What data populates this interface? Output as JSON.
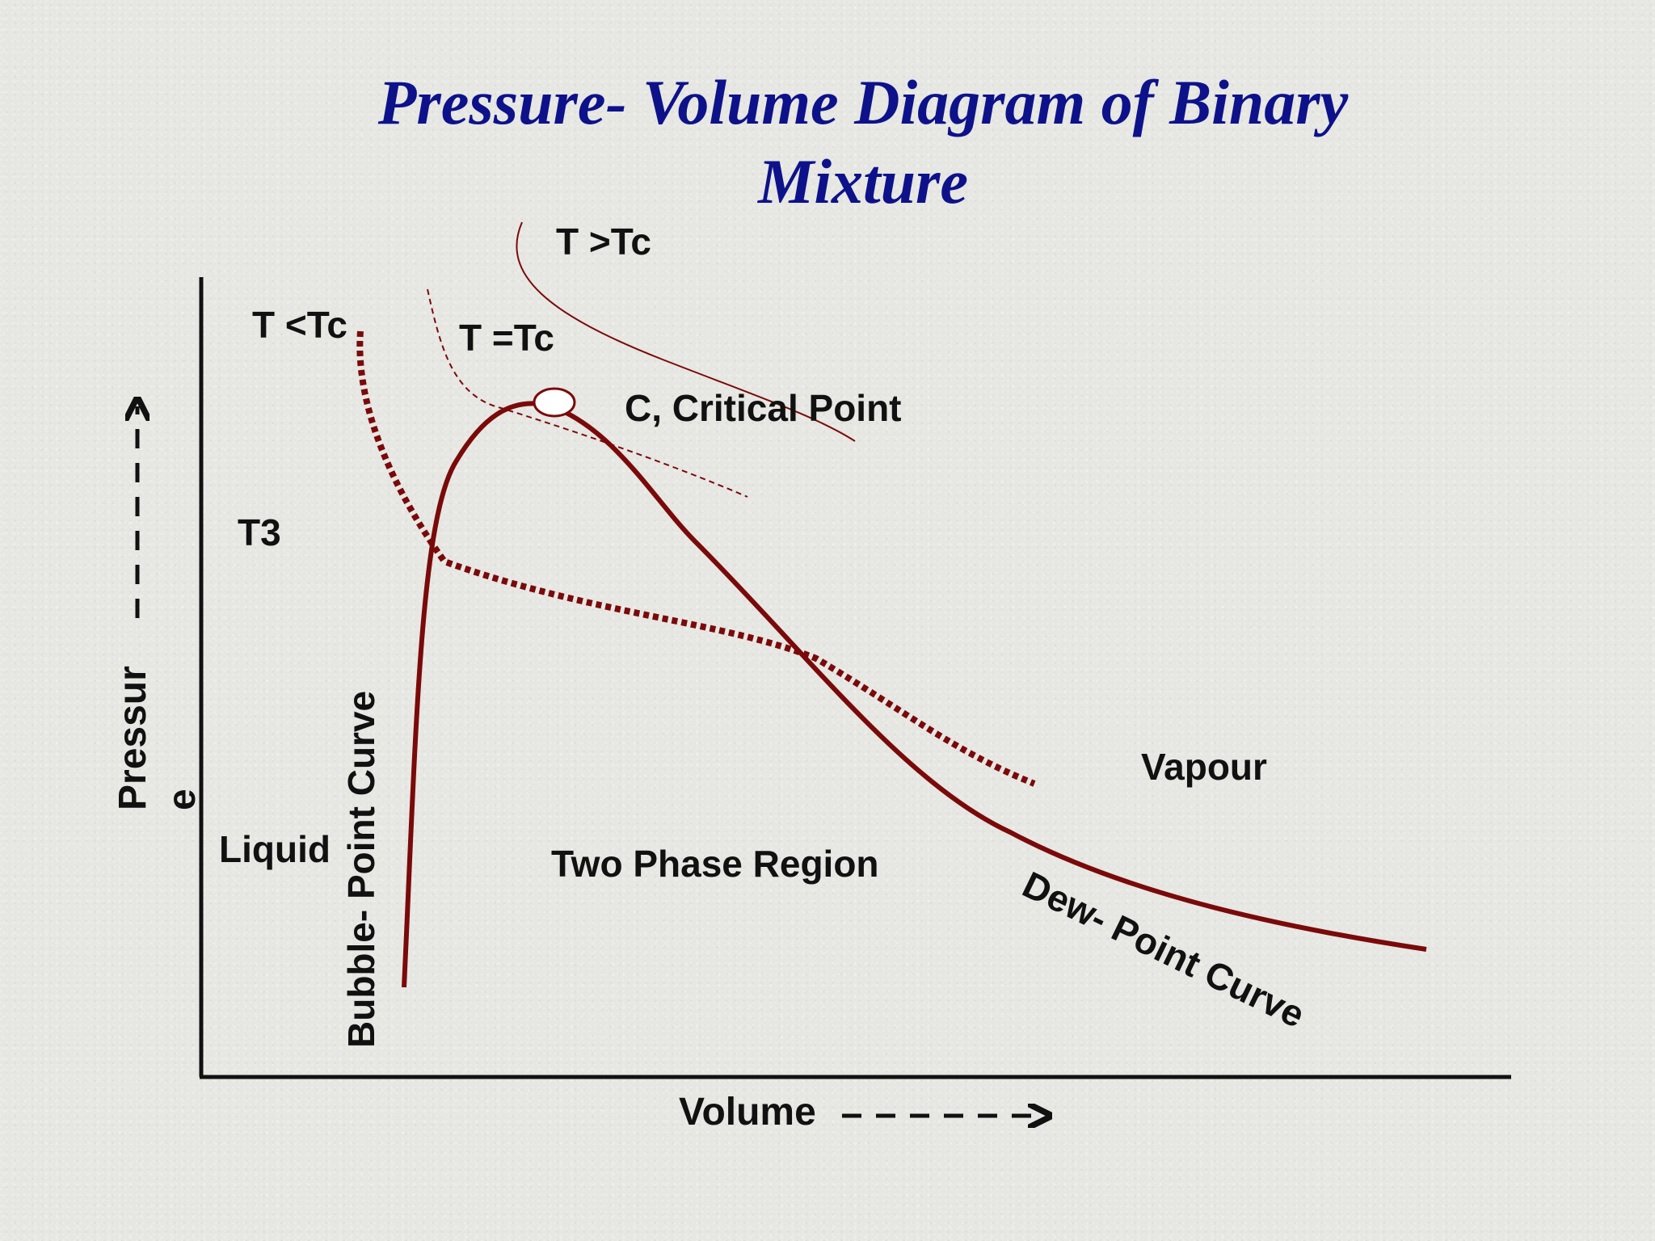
{
  "title": {
    "line1": "Pressure- Volume Diagram of Binary",
    "line2": "Mixture"
  },
  "axes": {
    "x_label": "Volume",
    "y_label_part1": "Pressur",
    "y_label_part2": "e"
  },
  "labels": {
    "t_greater_tc": "T >Tc",
    "t_less_tc": "T <Tc",
    "t_equal_tc": "T =Tc",
    "critical_point": "C, Critical Point",
    "t3": "T3",
    "liquid": "Liquid",
    "vapour": "Vapour",
    "two_phase": "Two Phase Region",
    "bubble_point_curve": "Bubble- Point Curve",
    "dew_point_curve": "Dew- Point Curve"
  },
  "colors": {
    "title": "#0d128a",
    "curve": "#7a0a0a",
    "text": "#111111",
    "background": "#e6e6e2"
  }
}
